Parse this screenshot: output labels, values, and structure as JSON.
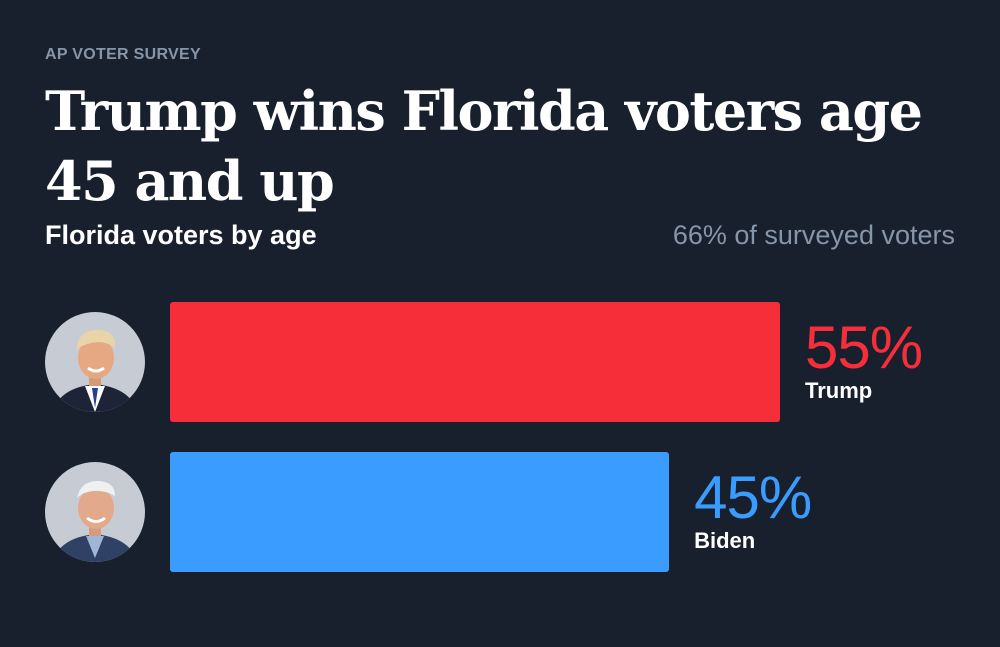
{
  "header": {
    "kicker": "AP VOTER SURVEY",
    "title": "Trump wins Florida voters age 45 and up",
    "subtitle": "Florida voters by age",
    "note": "66% of surveyed voters"
  },
  "colors": {
    "background": "#18202e",
    "trump": "#f52e39",
    "biden": "#3a9cff",
    "muted": "#8795a8"
  },
  "chart_data": {
    "type": "bar",
    "orientation": "horizontal",
    "categories": [
      "Trump",
      "Biden"
    ],
    "values": [
      55,
      45
    ],
    "labels": [
      "55%",
      "45%"
    ],
    "xlim": [
      0,
      100
    ],
    "grid": false,
    "title": "Trump wins Florida voters age 45 and up",
    "subtitle": "Florida voters by age"
  },
  "candidates": [
    {
      "name": "Trump",
      "value": 55,
      "label": "55%",
      "icon": "trump-avatar-icon"
    },
    {
      "name": "Biden",
      "value": 45,
      "label": "45%",
      "icon": "biden-avatar-icon"
    }
  ]
}
